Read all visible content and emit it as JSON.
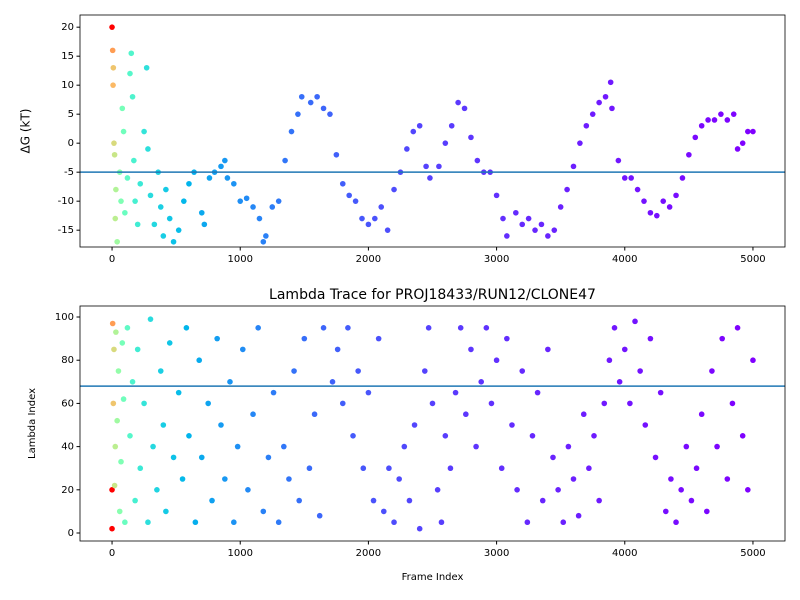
{
  "chart_data": [
    {
      "type": "scatter",
      "ylabel": "ΔG (kT)",
      "cmap": "rainbow_r",
      "color_norm": "log",
      "xlim": [
        -250,
        5250
      ],
      "ylim": [
        -17.9,
        22.1
      ],
      "xticks": [
        0,
        1000,
        2000,
        3000,
        4000,
        5000
      ],
      "yticks": [
        -15,
        -10,
        -5,
        0,
        5,
        10,
        15,
        20
      ],
      "hline": -5,
      "hline_color": "#1f77b4",
      "x": [
        0,
        5,
        10,
        8,
        15,
        20,
        30,
        25,
        40,
        60,
        70,
        80,
        90,
        100,
        120,
        140,
        150,
        160,
        170,
        180,
        200,
        220,
        250,
        270,
        280,
        300,
        330,
        360,
        380,
        400,
        420,
        450,
        480,
        520,
        560,
        600,
        640,
        700,
        720,
        760,
        800,
        850,
        880,
        900,
        950,
        1000,
        1050,
        1100,
        1150,
        1180,
        1200,
        1250,
        1300,
        1350,
        1400,
        1450,
        1480,
        1550,
        1600,
        1650,
        1700,
        1750,
        1800,
        1850,
        1900,
        1950,
        2000,
        2050,
        2100,
        2150,
        2200,
        2250,
        2300,
        2350,
        2400,
        2450,
        2480,
        2550,
        2600,
        2650,
        2700,
        2750,
        2800,
        2850,
        2900,
        2950,
        3000,
        3050,
        3080,
        3150,
        3200,
        3250,
        3300,
        3350,
        3400,
        3450,
        3500,
        3550,
        3600,
        3650,
        3700,
        3750,
        3800,
        3850,
        3890,
        3900,
        3950,
        4000,
        4050,
        4100,
        4150,
        4200,
        4250,
        4300,
        4350,
        4400,
        4450,
        4500,
        4550,
        4600,
        4650,
        4700,
        4750,
        4800,
        4850,
        4880,
        4920,
        4960,
        5000
      ],
      "y": [
        20,
        16,
        13,
        10,
        0,
        -2,
        -8,
        -13,
        -17,
        -5,
        -10,
        6,
        2,
        -12,
        -6,
        12,
        15.5,
        8,
        -3,
        -10,
        -14,
        -7,
        2,
        13,
        -1,
        -9,
        -14,
        -5,
        -11,
        -16,
        -8,
        -13,
        -17,
        -15,
        -10,
        -7,
        -5,
        -12,
        -14,
        -6,
        -5,
        -4,
        -3,
        -6,
        -7,
        -10,
        -9.5,
        -11,
        -13,
        -17,
        -16,
        -11,
        -10,
        -3,
        2,
        5,
        8,
        7,
        8,
        6,
        5,
        -2,
        -7,
        -9,
        -10,
        -13,
        -14,
        -13,
        -11,
        -15,
        -8,
        -5,
        -1,
        2,
        3,
        -4,
        -6,
        -4,
        0,
        3,
        7,
        6,
        1,
        -3,
        -5,
        -5,
        -9,
        -13,
        -16,
        -12,
        -14,
        -13,
        -15,
        -14,
        -16,
        -15,
        -11,
        -8,
        -4,
        0,
        3,
        5,
        7,
        8,
        10.5,
        6,
        -3,
        -6,
        -6,
        -8,
        -10,
        -12,
        -12.5,
        -10,
        -11,
        -9,
        -6,
        -2,
        1,
        3,
        4,
        4,
        5,
        4,
        5,
        -1,
        0,
        2,
        2
      ]
    },
    {
      "type": "scatter",
      "title": "Lambda Trace for PROJ18433/RUN12/CLONE47",
      "xlabel": "Frame Index",
      "ylabel": "Lambda Index",
      "cmap": "rainbow_r",
      "color_norm": "log",
      "xlim": [
        -250,
        5250
      ],
      "ylim": [
        -3.7,
        105.1
      ],
      "xticks": [
        0,
        1000,
        2000,
        3000,
        4000,
        5000
      ],
      "yticks": [
        0,
        20,
        40,
        60,
        80,
        100
      ],
      "hline": 68,
      "hline_color": "#1f77b4",
      "x": [
        0,
        0,
        5,
        10,
        15,
        20,
        25,
        30,
        40,
        50,
        60,
        70,
        80,
        90,
        100,
        120,
        140,
        160,
        180,
        200,
        220,
        250,
        280,
        300,
        320,
        350,
        380,
        400,
        420,
        450,
        480,
        520,
        550,
        580,
        600,
        650,
        680,
        700,
        750,
        780,
        820,
        850,
        880,
        920,
        950,
        980,
        1020,
        1060,
        1100,
        1140,
        1180,
        1220,
        1260,
        1300,
        1340,
        1380,
        1420,
        1460,
        1500,
        1540,
        1580,
        1620,
        1650,
        1720,
        1760,
        1800,
        1840,
        1880,
        1920,
        1960,
        2000,
        2040,
        2080,
        2120,
        2160,
        2200,
        2240,
        2280,
        2320,
        2360,
        2400,
        2440,
        2470,
        2500,
        2540,
        2570,
        2600,
        2640,
        2680,
        2720,
        2760,
        2800,
        2840,
        2880,
        2920,
        2960,
        3000,
        3040,
        3080,
        3120,
        3160,
        3200,
        3240,
        3280,
        3320,
        3360,
        3400,
        3440,
        3480,
        3520,
        3560,
        3600,
        3640,
        3680,
        3720,
        3760,
        3800,
        3840,
        3880,
        3920,
        3960,
        4000,
        4040,
        4080,
        4120,
        4160,
        4200,
        4240,
        4280,
        4320,
        4360,
        4400,
        4440,
        4480,
        4520,
        4560,
        4600,
        4640,
        4680,
        4720,
        4760,
        4800,
        4840,
        4880,
        4920,
        4960,
        5000
      ],
      "y": [
        2,
        20,
        97,
        60,
        85,
        22,
        40,
        93,
        52,
        75,
        10,
        33,
        88,
        62,
        5,
        95,
        45,
        70,
        15,
        85,
        30,
        60,
        5,
        99,
        40,
        20,
        75,
        50,
        10,
        88,
        35,
        65,
        25,
        95,
        45,
        5,
        80,
        35,
        60,
        15,
        90,
        50,
        25,
        70,
        5,
        40,
        85,
        20,
        55,
        95,
        10,
        35,
        65,
        5,
        40,
        25,
        75,
        15,
        90,
        30,
        55,
        8,
        95,
        70,
        85,
        60,
        95,
        45,
        75,
        30,
        65,
        15,
        90,
        10,
        30,
        5,
        25,
        40,
        15,
        50,
        2,
        75,
        95,
        60,
        20,
        5,
        45,
        30,
        65,
        95,
        55,
        85,
        40,
        70,
        95,
        60,
        80,
        30,
        90,
        50,
        20,
        75,
        5,
        45,
        65,
        15,
        85,
        35,
        20,
        5,
        40,
        25,
        8,
        55,
        30,
        45,
        15,
        60,
        80,
        95,
        70,
        85,
        60,
        98,
        75,
        50,
        90,
        35,
        65,
        10,
        25,
        5,
        20,
        40,
        15,
        30,
        55,
        10,
        75,
        40,
        90,
        25,
        60,
        95,
        45,
        20,
        80
      ]
    }
  ]
}
